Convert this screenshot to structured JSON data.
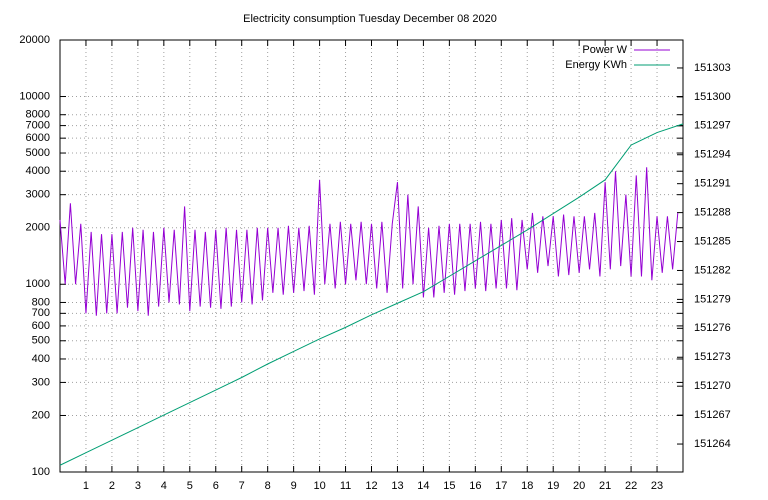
{
  "chart_data": {
    "type": "line",
    "title": "Electricity consumption Tuesday December 08 2020",
    "xlim": [
      0,
      24
    ],
    "xticks": [
      1,
      2,
      3,
      4,
      5,
      6,
      7,
      8,
      9,
      10,
      11,
      12,
      13,
      14,
      15,
      16,
      17,
      18,
      19,
      20,
      21,
      22,
      23
    ],
    "ylim": [
      100,
      20000
    ],
    "log_y": true,
    "yticks": [
      100,
      200,
      300,
      400,
      500,
      600,
      700,
      800,
      1000,
      2000,
      3000,
      4000,
      5000,
      6000,
      7000,
      8000,
      10000,
      20000
    ],
    "y2lim": [
      151261.1,
      151305.9
    ],
    "y2ticks": [
      151264,
      151267,
      151270,
      151273,
      151276,
      151279,
      151282,
      151285,
      151288,
      151291,
      151294,
      151297,
      151300,
      151303
    ],
    "grid": true,
    "legend": "top-right",
    "series": [
      {
        "name": "Power W",
        "color": "#9400d3",
        "x": [
          0,
          0.2,
          0.4,
          0.6,
          0.8,
          1,
          1.2,
          1.4,
          1.6,
          1.8,
          2,
          2.2,
          2.4,
          2.6,
          2.8,
          3,
          3.2,
          3.4,
          3.6,
          3.8,
          4,
          4.2,
          4.4,
          4.6,
          4.8,
          5,
          5.2,
          5.4,
          5.6,
          5.8,
          6,
          6.2,
          6.4,
          6.6,
          6.8,
          7,
          7.2,
          7.4,
          7.6,
          7.8,
          8,
          8.2,
          8.4,
          8.6,
          8.8,
          9,
          9.2,
          9.4,
          9.6,
          9.8,
          10,
          10.2,
          10.4,
          10.6,
          10.8,
          11,
          11.2,
          11.4,
          11.6,
          11.8,
          12,
          12.2,
          12.4,
          12.6,
          12.8,
          13,
          13.2,
          13.4,
          13.6,
          13.8,
          14,
          14.2,
          14.4,
          14.6,
          14.8,
          15,
          15.2,
          15.4,
          15.6,
          15.8,
          16,
          16.2,
          16.4,
          16.6,
          16.8,
          17,
          17.2,
          17.4,
          17.6,
          17.8,
          18,
          18.2,
          18.4,
          18.6,
          18.8,
          19,
          19.2,
          19.4,
          19.6,
          19.8,
          20,
          20.2,
          20.4,
          20.6,
          20.8,
          21,
          21.2,
          21.4,
          21.6,
          21.8,
          22,
          22.2,
          22.4,
          22.6,
          22.8,
          23,
          23.2,
          23.4,
          23.6,
          23.8
        ],
        "values": [
          2200,
          1000,
          2700,
          1000,
          2100,
          700,
          1900,
          680,
          1850,
          700,
          1850,
          700,
          1900,
          750,
          2000,
          720,
          1950,
          680,
          1900,
          760,
          2000,
          800,
          1950,
          780,
          2600,
          720,
          1950,
          760,
          1900,
          750,
          1950,
          740,
          2000,
          760,
          1950,
          800,
          1950,
          780,
          2000,
          820,
          2000,
          900,
          2000,
          880,
          2050,
          900,
          2000,
          920,
          2050,
          880,
          3600,
          1000,
          2100,
          950,
          2150,
          1000,
          2100,
          1050,
          2150,
          1000,
          2100,
          950,
          2150,
          900,
          2100,
          3500,
          950,
          3000,
          1000,
          2600,
          850,
          2000,
          850,
          2050,
          900,
          2100,
          880,
          2100,
          920,
          2100,
          950,
          2150,
          920,
          2100,
          950,
          2200,
          950,
          2250,
          930,
          2200,
          1200,
          2400,
          1150,
          2300,
          1250,
          2300,
          1100,
          2350,
          1120,
          2300,
          1150,
          2300,
          1200,
          2400,
          1100,
          3500,
          1200,
          4000,
          1250,
          3000,
          1100,
          3800,
          1100,
          4200,
          1050,
          2300,
          1150,
          2300,
          1200,
          2400
        ]
      },
      {
        "name": "Energy KWh",
        "color": "#009e73",
        "axis": "y2",
        "x": [
          0,
          1,
          2,
          3,
          4,
          5,
          6,
          7,
          8,
          9,
          10,
          11,
          12,
          13,
          14,
          15,
          16,
          17,
          18,
          19,
          20,
          21,
          22,
          23,
          24
        ],
        "values": [
          151261.8,
          151263.1,
          151264.4,
          151265.7,
          151267.0,
          151268.3,
          151269.6,
          151270.9,
          151272.3,
          151273.6,
          151274.9,
          151276.1,
          151277.4,
          151278.6,
          151279.8,
          151281.4,
          151283.0,
          151284.6,
          151286.2,
          151287.9,
          151289.6,
          151291.4,
          151295.0,
          151296.3,
          151297.2
        ]
      }
    ]
  }
}
